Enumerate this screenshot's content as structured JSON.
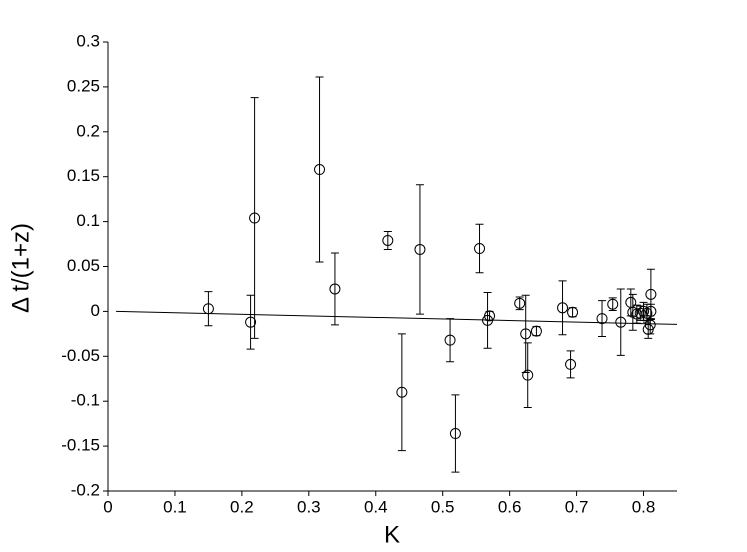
{
  "chart_data": {
    "type": "scatter",
    "x_label": "K",
    "y_label": "Δ t/(1+z)",
    "xlim": [
      0,
      0.85
    ],
    "ylim": [
      -0.2,
      0.3
    ],
    "xticks": [
      0,
      0.1,
      0.2,
      0.3,
      0.4,
      0.5,
      0.6,
      0.7,
      0.8
    ],
    "yticks": [
      -0.2,
      -0.15,
      -0.1,
      -0.05,
      0,
      0.05,
      0.1,
      0.15,
      0.2,
      0.25,
      0.3
    ],
    "color": "#000000",
    "x": [
      0.15,
      0.213,
      0.219,
      0.316,
      0.339,
      0.418,
      0.439,
      0.466,
      0.511,
      0.519,
      0.555,
      0.567,
      0.57,
      0.615,
      0.624,
      0.627,
      0.64,
      0.679,
      0.691,
      0.694,
      0.738,
      0.754,
      0.766,
      0.781,
      0.784,
      0.79,
      0.795,
      0.8,
      0.805,
      0.807,
      0.811,
      0.81,
      0.811
    ],
    "values": [
      0.003,
      -0.012,
      0.104,
      0.158,
      0.025,
      0.079,
      -0.09,
      0.069,
      -0.032,
      -0.136,
      0.07,
      -0.01,
      -0.005,
      0.009,
      -0.025,
      -0.071,
      -0.022,
      0.004,
      -0.059,
      -0.001,
      -0.008,
      0.008,
      -0.012,
      0.01,
      -0.001,
      -0.003,
      -0.002,
      0.0,
      -0.002,
      -0.02,
      0.019,
      -0.015,
      0.0
    ],
    "errors": [
      0.019,
      0.03,
      0.134,
      0.103,
      0.04,
      0.01,
      0.065,
      0.072,
      0.024,
      0.043,
      0.027,
      0.031,
      0.005,
      0.007,
      0.043,
      0.036,
      0.005,
      0.03,
      0.015,
      0.005,
      0.02,
      0.007,
      0.037,
      0.015,
      0.02,
      0.01,
      0.008,
      0.01,
      0.01,
      0.01,
      0.028,
      0.01,
      0.008
    ],
    "fit": {
      "x": [
        0.012,
        0.85
      ],
      "values": [
        0,
        -0.0145
      ]
    }
  }
}
